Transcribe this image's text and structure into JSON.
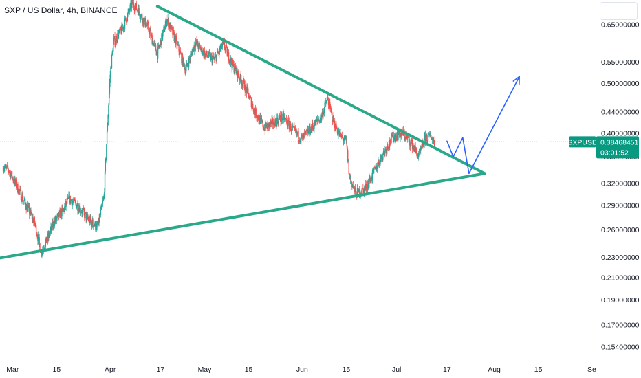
{
  "header": {
    "title": "SXP / US Dollar, 4h, BINANCE"
  },
  "colors": {
    "up": "#26a69a",
    "down": "#ef5350",
    "trend": "#2aa98a",
    "projection": "#2962ff",
    "tag": "#089981"
  },
  "chart_data": {
    "type": "candlestick",
    "symbol": "SXPUSD",
    "interval": "4h",
    "exchange": "BINANCE",
    "y_scale": "log",
    "ylim": [
      0.146,
      0.725
    ],
    "xlim": [
      "2021-02-25",
      "2021-09-02"
    ],
    "y_ticks": [
      "0.65000000",
      "0.55000000",
      "0.50000000",
      "0.44000000",
      "0.40000000",
      "0.36000000",
      "0.32000000",
      "0.29000000",
      "0.26000000",
      "0.23000000",
      "0.21000000",
      "0.19000000",
      "0.17000000",
      "0.15400000"
    ],
    "x_ticks": [
      {
        "label": "Mar",
        "date": "2021-03-01"
      },
      {
        "label": "15",
        "date": "2021-03-15"
      },
      {
        "label": "Apr",
        "date": "2021-04-01"
      },
      {
        "label": "17",
        "date": "2021-04-17"
      },
      {
        "label": "May",
        "date": "2021-05-01"
      },
      {
        "label": "15",
        "date": "2021-05-15"
      },
      {
        "label": "Jun",
        "date": "2021-06-01"
      },
      {
        "label": "15",
        "date": "2021-06-15"
      },
      {
        "label": "Jul",
        "date": "2021-07-01"
      },
      {
        "label": "17",
        "date": "2021-07-17"
      },
      {
        "label": "Aug",
        "date": "2021-08-01"
      },
      {
        "label": "15",
        "date": "2021-08-15"
      },
      {
        "label": "Se",
        "date": "2021-09-01"
      }
    ],
    "price_path": [
      [
        "2021-02-26",
        0.345
      ],
      [
        "2021-02-28",
        0.338
      ],
      [
        "2021-03-02",
        0.318
      ],
      [
        "2021-03-05",
        0.292
      ],
      [
        "2021-03-08",
        0.268
      ],
      [
        "2021-03-10",
        0.236
      ],
      [
        "2021-03-12",
        0.248
      ],
      [
        "2021-03-14",
        0.268
      ],
      [
        "2021-03-17",
        0.283
      ],
      [
        "2021-03-19",
        0.298
      ],
      [
        "2021-03-22",
        0.288
      ],
      [
        "2021-03-25",
        0.272
      ],
      [
        "2021-03-28",
        0.262
      ],
      [
        "2021-03-30",
        0.3
      ],
      [
        "2021-03-31",
        0.4
      ],
      [
        "2021-04-01",
        0.52
      ],
      [
        "2021-04-02",
        0.6
      ],
      [
        "2021-04-05",
        0.64
      ],
      [
        "2021-04-08",
        0.715
      ],
      [
        "2021-04-10",
        0.69
      ],
      [
        "2021-04-13",
        0.64
      ],
      [
        "2021-04-16",
        0.57
      ],
      [
        "2021-04-19",
        0.665
      ],
      [
        "2021-04-22",
        0.6
      ],
      [
        "2021-04-25",
        0.53
      ],
      [
        "2021-04-28",
        0.6
      ],
      [
        "2021-05-01",
        0.57
      ],
      [
        "2021-05-04",
        0.555
      ],
      [
        "2021-05-07",
        0.595
      ],
      [
        "2021-05-10",
        0.54
      ],
      [
        "2021-05-14",
        0.49
      ],
      [
        "2021-05-17",
        0.44
      ],
      [
        "2021-05-20",
        0.41
      ],
      [
        "2021-05-23",
        0.42
      ],
      [
        "2021-05-26",
        0.43
      ],
      [
        "2021-05-29",
        0.405
      ],
      [
        "2021-06-01",
        0.39
      ],
      [
        "2021-06-04",
        0.41
      ],
      [
        "2021-06-07",
        0.43
      ],
      [
        "2021-06-09",
        0.465
      ],
      [
        "2021-06-11",
        0.42
      ],
      [
        "2021-06-13",
        0.395
      ],
      [
        "2021-06-15",
        0.385
      ],
      [
        "2021-06-16",
        0.33
      ],
      [
        "2021-06-18",
        0.305
      ],
      [
        "2021-06-21",
        0.312
      ],
      [
        "2021-06-24",
        0.338
      ],
      [
        "2021-06-27",
        0.368
      ],
      [
        "2021-06-30",
        0.395
      ],
      [
        "2021-07-03",
        0.4
      ],
      [
        "2021-07-06",
        0.38
      ],
      [
        "2021-07-08",
        0.36
      ],
      [
        "2021-07-10",
        0.39
      ],
      [
        "2021-07-12",
        0.395
      ],
      [
        "2021-07-13",
        0.384
      ]
    ],
    "current_price": {
      "symbol": "SXPUSD",
      "value": "0.38468451",
      "countdown": "03:01:52",
      "price": 0.38468451
    },
    "annotations": {
      "resistance_line": [
        [
          "2021-04-16",
          0.705
        ],
        [
          "2021-07-29",
          0.334
        ]
      ],
      "support_line": [
        [
          "2021-02-25",
          0.229
        ],
        [
          "2021-07-29",
          0.334
        ]
      ],
      "projection_path": [
        [
          "2021-07-17",
          0.386
        ],
        [
          "2021-07-19",
          0.36
        ],
        [
          "2021-07-22",
          0.392
        ],
        [
          "2021-07-24",
          0.334
        ],
        [
          "2021-08-09",
          0.515
        ]
      ]
    }
  }
}
